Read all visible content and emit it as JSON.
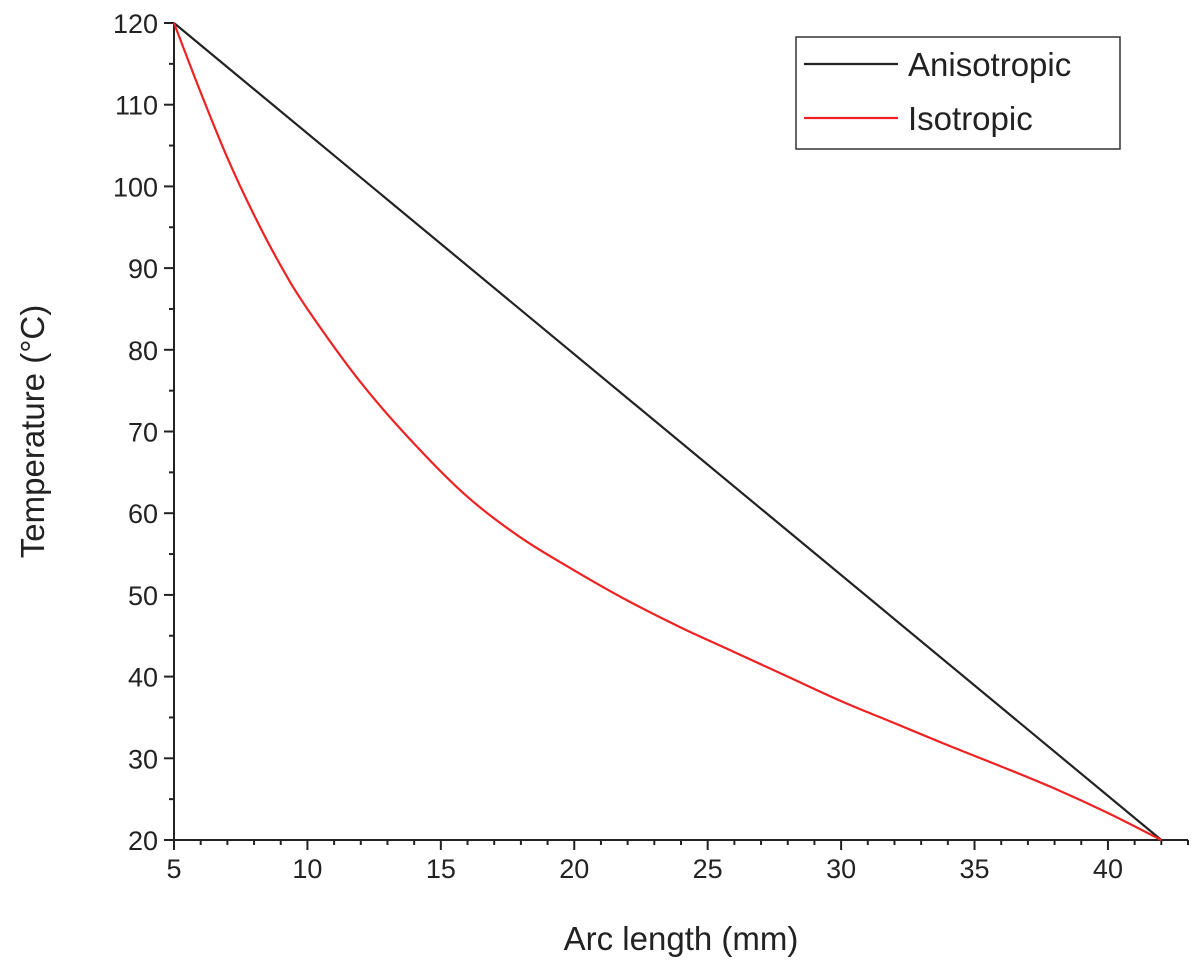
{
  "chart_data": {
    "type": "line",
    "title": "",
    "xlabel": "Arc length (mm)",
    "ylabel": "Temperature (°C)",
    "xlim": [
      5,
      43
    ],
    "ylim": [
      20,
      120
    ],
    "x_ticks": [
      "5",
      "10",
      "15",
      "20",
      "25",
      "30",
      "35",
      "40"
    ],
    "y_ticks": [
      "20",
      "30",
      "40",
      "50",
      "60",
      "70",
      "80",
      "90",
      "100",
      "110",
      "120"
    ],
    "grid": false,
    "legend_position": "top-right",
    "series": [
      {
        "name": "Anisotropic",
        "color": "#222222",
        "x": [
          5,
          42
        ],
        "y": [
          120,
          20
        ]
      },
      {
        "name": "Isotropic",
        "color": "#ee2222",
        "x": [
          5,
          6,
          7,
          8,
          9,
          10,
          12,
          14,
          16,
          18,
          20,
          22,
          24,
          26,
          28,
          30,
          32,
          34,
          36,
          38,
          40,
          42
        ],
        "y": [
          120,
          111.5,
          103.5,
          96.5,
          90.3,
          85,
          76,
          68.5,
          62,
          57,
          53,
          49.3,
          46,
          43,
          40,
          37,
          34.3,
          31.6,
          29,
          26.3,
          23.3,
          20
        ]
      }
    ]
  }
}
